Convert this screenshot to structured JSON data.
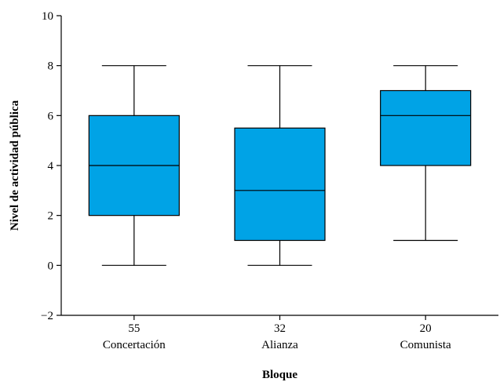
{
  "chart_data": {
    "type": "boxplot",
    "xlabel": "Bloque",
    "ylabel": "Nivel de actividad pública",
    "ylim": [
      -2,
      10
    ],
    "yticks": [
      -2,
      0,
      2,
      4,
      6,
      8,
      10
    ],
    "ytick_labels": [
      "−2",
      "0",
      "2",
      "4",
      "6",
      "8",
      "10"
    ],
    "box_color": "#00a3e6",
    "grid": false,
    "categories": [
      {
        "count": "55",
        "name": "Concertación",
        "min": 0,
        "q1": 2,
        "median": 4,
        "q3": 6,
        "max": 8
      },
      {
        "count": "32",
        "name": "Alianza",
        "min": 0,
        "q1": 1,
        "median": 3,
        "q3": 5.5,
        "max": 8
      },
      {
        "count": "20",
        "name": "Comunista",
        "min": 1,
        "q1": 4,
        "median": 6,
        "q3": 7,
        "max": 8
      }
    ]
  }
}
